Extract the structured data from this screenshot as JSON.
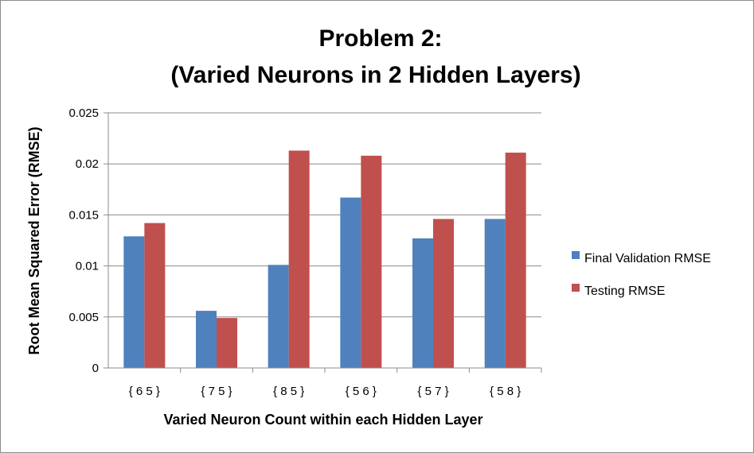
{
  "chart_data": {
    "type": "bar",
    "title_line1": "Problem 2:",
    "title_line2": "(Varied Neurons in 2 Hidden Layers)",
    "xlabel": "Varied Neuron Count within each Hidden Layer",
    "ylabel": "Root Mean Squared Error (RMSE)",
    "categories": [
      "{ 6 5 }",
      "{ 7 5 }",
      "{ 8 5 }",
      "{ 5 6 }",
      "{ 5 7 }",
      "{ 5 8 }"
    ],
    "ylim": [
      0,
      0.025
    ],
    "yticks": [
      0,
      0.005,
      0.01,
      0.015,
      0.02,
      0.025
    ],
    "ytick_labels": [
      "0",
      "0.005",
      "0.01",
      "0.015",
      "0.02",
      "0.025"
    ],
    "grid": true,
    "legend_position": "right",
    "series": [
      {
        "name": "Final Validation RMSE",
        "color": "#4f81bd",
        "values": [
          0.0129,
          0.0056,
          0.0101,
          0.0167,
          0.0127,
          0.0146
        ]
      },
      {
        "name": "Testing RMSE",
        "color": "#c0504d",
        "values": [
          0.0142,
          0.0049,
          0.0213,
          0.0208,
          0.0146,
          0.0211
        ]
      }
    ]
  }
}
